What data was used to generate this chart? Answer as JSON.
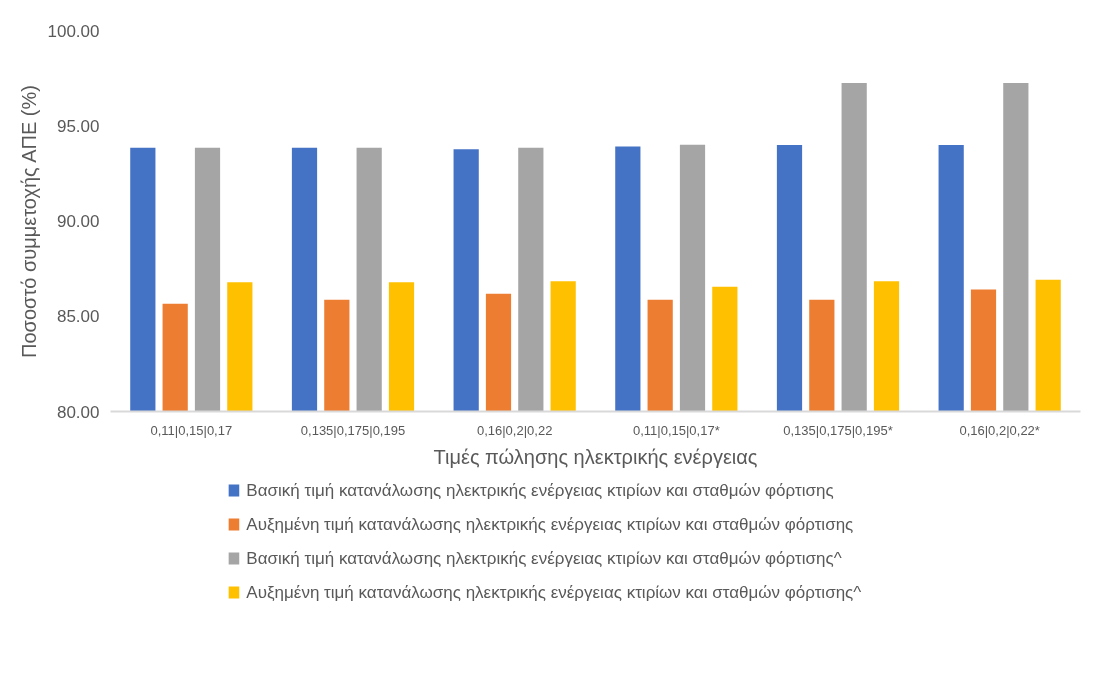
{
  "chart_data": {
    "type": "bar",
    "categories": [
      "0,11|0,15|0,17",
      "0,135|0,175|0,195",
      "0,16|0,2|0,22",
      "0,11|0,15|0,17*",
      "0,135|0,175|0,195*",
      "0,16|0,2|0,22*"
    ],
    "series": [
      {
        "name": "Βασική τιμή κατανάλωσης ηλεκτρικής ενέργειας κτιρίων και σταθμών φόρτισης",
        "color": "#4472c4",
        "values": [
          93.84,
          93.84,
          93.76,
          93.91,
          93.99,
          93.99
        ]
      },
      {
        "name": "Αυξημένη τιμή κατανάλωσης ηλεκτρικής ενέργειας κτιρίων και σταθμών φόρτισης",
        "color": "#ed7d31",
        "values": [
          85.66,
          85.87,
          86.18,
          85.87,
          85.87,
          86.4
        ]
      },
      {
        "name": "Βασική τιμή κατανάλωσης ηλεκτρικής ενέργειας κτιρίων και σταθμών φόρτισης^",
        "color": "#a5a5a5",
        "values": [
          93.84,
          93.84,
          93.84,
          94.0,
          97.24,
          97.24
        ]
      },
      {
        "name": "Αυξημένη τιμή κατανάλωσης ηλεκτρικής ενέργειας κτιρίων και σταθμών φόρτισης^",
        "color": "#ffc000",
        "values": [
          86.78,
          86.78,
          86.84,
          86.55,
          86.84,
          86.92
        ]
      }
    ],
    "xlabel": "Τιμές πώλησης ηλεκτρικής ενέργειας",
    "ylabel": "Ποσοστό συμμετοχής ΑΠΕ (%)",
    "ylim": [
      80,
      100
    ],
    "yticks": [
      {
        "value": 80,
        "label": "80.00"
      },
      {
        "value": 85,
        "label": "85.00"
      },
      {
        "value": 90,
        "label": "90.00"
      },
      {
        "value": 95,
        "label": "95.00"
      },
      {
        "value": 100,
        "label": "100.00"
      }
    ],
    "grid": false,
    "legend": "bottom"
  }
}
